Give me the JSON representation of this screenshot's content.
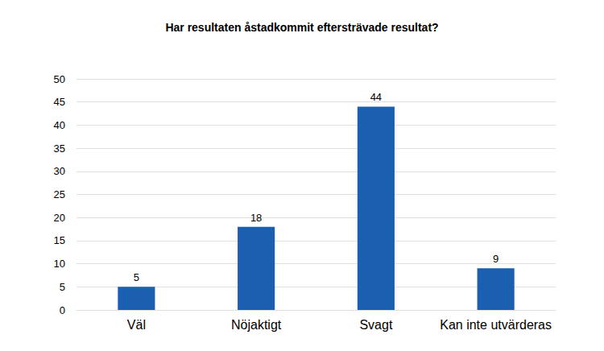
{
  "chart_data": {
    "type": "bar",
    "title": "Har resultaten åstadkommit eftersträvade resultat?",
    "categories": [
      "Väl",
      "Nöjaktigt",
      "Svagt",
      "Kan inte utvärderas"
    ],
    "values": [
      5,
      18,
      44,
      9
    ],
    "color": "#1a5fb0",
    "ylim": [
      0,
      50
    ],
    "yticks": [
      0,
      5,
      10,
      15,
      20,
      25,
      30,
      35,
      40,
      45,
      50
    ],
    "grid": true,
    "data_labels": true
  }
}
